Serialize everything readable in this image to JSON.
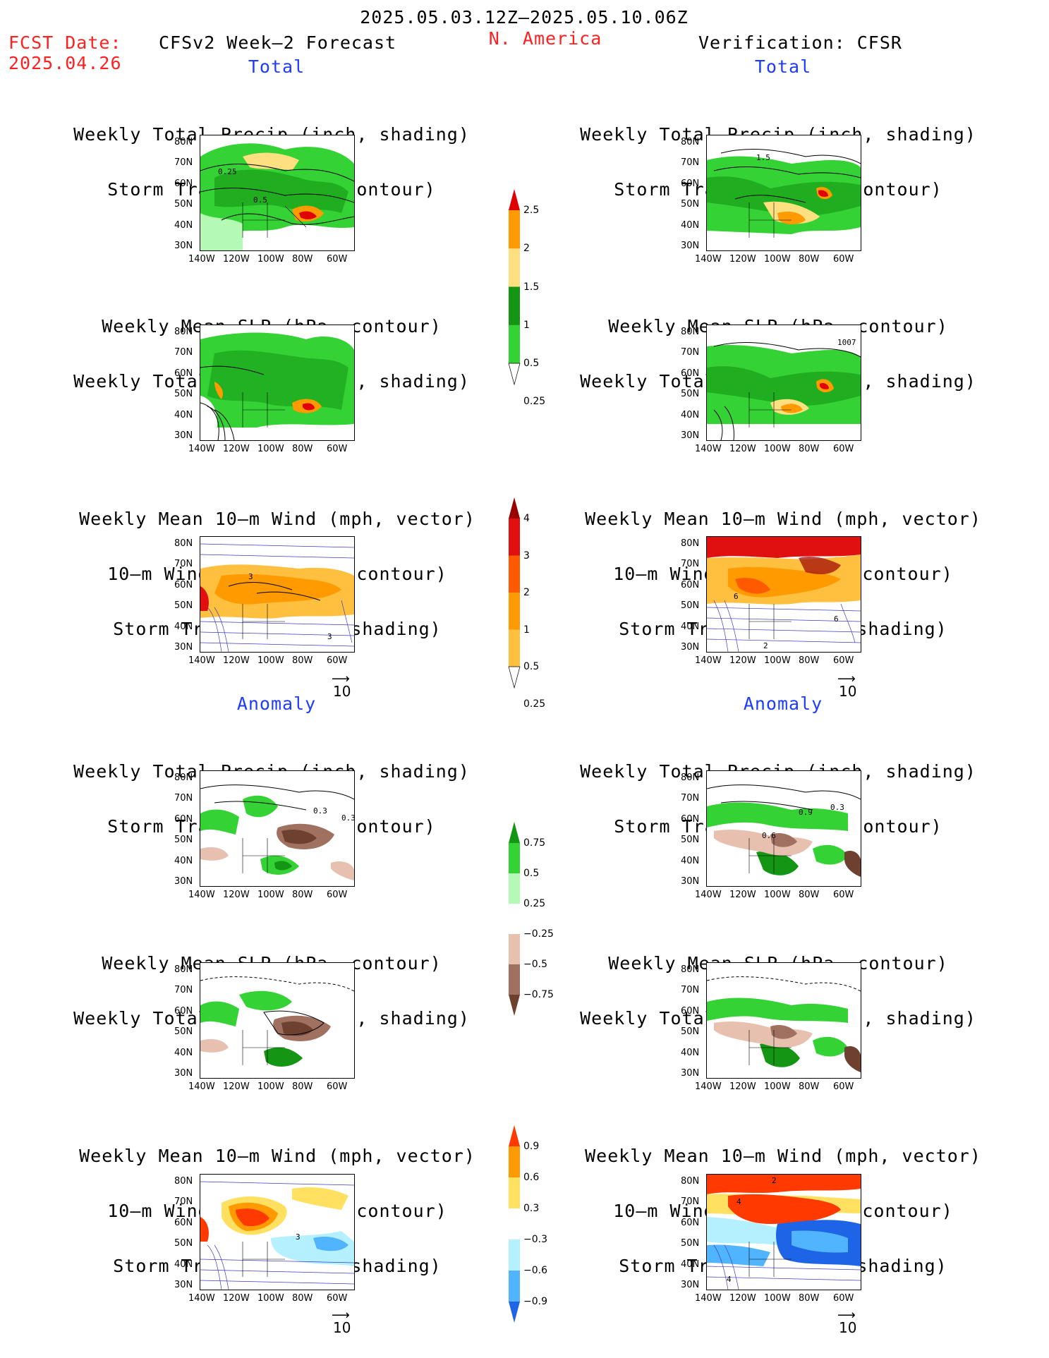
{
  "header": {
    "date_range": "2025.05.03.12Z–2025.05.10.06Z",
    "fcst_date_label": "FCST Date:",
    "fcst_date_value": "2025.04.26",
    "left_model": "CFSv2 Week–2 Forecast",
    "region": "N. America",
    "right_model": "Verification: CFSR"
  },
  "sections": {
    "total": "Total",
    "anomaly": "Anomaly"
  },
  "titles": {
    "precip_storm": [
      "Weekly Total Precip (inch, shading)",
      "Storm Track Density (contour)"
    ],
    "slp_precip": [
      "Weekly Mean SLP (hPa, contour)",
      "Weekly Total Precip (inch, shading)"
    ],
    "wind_storm": [
      "Weekly Mean 10–m Wind (mph, vector)",
      "10–m Wind Speed (mph, contour)",
      "Storm Track Density (shading)"
    ]
  },
  "axes": {
    "lat_ticks": [
      "80N",
      "70N",
      "60N",
      "50N",
      "40N",
      "30N"
    ],
    "lon_ticks": [
      "140W",
      "120W",
      "100W",
      "80W",
      "60W"
    ]
  },
  "vector_scale": "10",
  "contour_labels": {
    "m1": [
      "0.25",
      "0.5"
    ],
    "m2": [
      "1.5"
    ],
    "m4": [
      "1007"
    ],
    "m5": [
      "3",
      "3"
    ],
    "m6": [
      "6",
      "6",
      "2"
    ],
    "m7": [
      "0.3",
      "0.3"
    ],
    "m8": [
      "0.9",
      "0.3",
      "0.6"
    ],
    "m11": [
      "3"
    ],
    "m12": [
      "2",
      "4",
      "4"
    ]
  },
  "colorbars": {
    "precip_total": {
      "labels": [
        "2.5",
        "2",
        "1.5",
        "1",
        "0.5",
        "0.25"
      ],
      "colors": [
        "#e00000",
        "#ff9a00",
        "#ffe080",
        "#149614",
        "#34d234",
        "#b4fab4"
      ]
    },
    "storm_total": {
      "labels": [
        "4",
        "3",
        "2",
        "1",
        "0.5",
        "0.25"
      ],
      "colors": [
        "#9a0000",
        "#e01010",
        "#ff5a00",
        "#ff9a00",
        "#ffc040",
        "#fff0a0"
      ]
    },
    "precip_anom": {
      "labels": [
        "0.75",
        "0.5",
        "0.25",
        "−0.25",
        "−0.5",
        "−0.75"
      ],
      "colors": [
        "#149614",
        "#34d234",
        "#b4fab4",
        "#ffffff",
        "#e8c0b0",
        "#a07060",
        "#6e4030"
      ]
    },
    "storm_anom": {
      "labels": [
        "0.9",
        "0.6",
        "0.3",
        "−0.3",
        "−0.6",
        "−0.9"
      ],
      "colors": [
        "#ff3a00",
        "#ff9a00",
        "#ffe060",
        "#ffffff",
        "#b4f0ff",
        "#50b4ff",
        "#1e64e6"
      ]
    }
  }
}
